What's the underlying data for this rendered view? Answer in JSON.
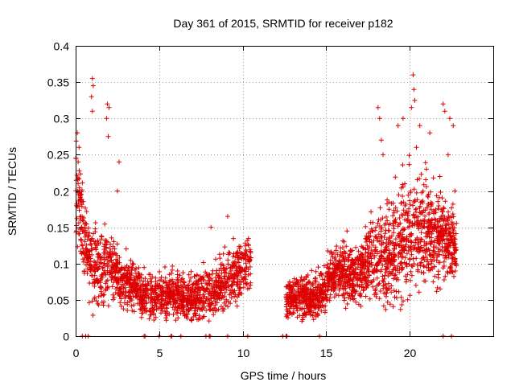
{
  "chart_data": {
    "type": "scatter",
    "title": "Day 361 of 2015, SRMTID for receiver p182",
    "xlabel": "GPS time / hours",
    "ylabel": "SRMTID / TECUs",
    "xlim": [
      0,
      25
    ],
    "ylim": [
      0,
      0.4
    ],
    "grid": true,
    "marker": "+",
    "color": "#dd0000",
    "x_ticks": [
      0,
      5,
      10,
      15,
      20
    ],
    "x_tick_labels": [
      "0",
      "5",
      "10",
      "15",
      "20"
    ],
    "y_ticks": [
      0,
      0.05,
      0.1,
      0.15,
      0.2,
      0.25,
      0.3,
      0.35,
      0.4
    ],
    "y_tick_labels": [
      "0",
      "0.05",
      "0.1",
      "0.15",
      "0.2",
      "0.25",
      "0.3",
      "0.35",
      "0.4"
    ],
    "profile": {
      "description": "approximate median SRMTID vs time (hours, TECU)",
      "x": [
        0,
        0.3,
        0.6,
        1.0,
        1.5,
        2.0,
        2.5,
        3.0,
        3.5,
        4.0,
        4.5,
        5.0,
        5.5,
        6.0,
        6.5,
        7.0,
        7.5,
        8.0,
        8.5,
        9.0,
        9.5,
        10.0,
        10.5,
        12.6,
        13.0,
        13.5,
        14.0,
        14.5,
        15.0,
        15.5,
        16.0,
        16.5,
        17.0,
        17.5,
        18.0,
        18.5,
        19.0,
        19.5,
        20.0,
        20.5,
        21.0,
        21.5,
        22.0,
        22.5,
        22.8
      ],
      "y": [
        0.2,
        0.17,
        0.12,
        0.1,
        0.09,
        0.1,
        0.085,
        0.075,
        0.07,
        0.055,
        0.055,
        0.055,
        0.06,
        0.055,
        0.055,
        0.05,
        0.055,
        0.06,
        0.065,
        0.08,
        0.085,
        0.095,
        0.1,
        0.055,
        0.055,
        0.055,
        0.05,
        0.055,
        0.07,
        0.085,
        0.09,
        0.085,
        0.09,
        0.1,
        0.11,
        0.115,
        0.12,
        0.13,
        0.14,
        0.14,
        0.145,
        0.14,
        0.14,
        0.13,
        0.12
      ]
    },
    "spread": {
      "description": "approximate vertical scatter half-width per segment",
      "x": [
        0,
        0.5,
        1.0,
        2.0,
        2.5,
        4.0,
        8.0,
        9.5,
        10.5,
        12.6,
        15.0,
        17.5,
        18.5,
        20.0,
        21.5,
        22.8
      ],
      "y": [
        0.05,
        0.05,
        0.05,
        0.04,
        0.03,
        0.025,
        0.03,
        0.035,
        0.03,
        0.025,
        0.03,
        0.04,
        0.06,
        0.07,
        0.06,
        0.04
      ]
    },
    "highlights": [
      {
        "x": 0.1,
        "y": 0.28
      },
      {
        "x": 0.2,
        "y": 0.26
      },
      {
        "x": 0.15,
        "y": 0.24
      },
      {
        "x": 1.0,
        "y": 0.355
      },
      {
        "x": 1.05,
        "y": 0.345
      },
      {
        "x": 0.95,
        "y": 0.33
      },
      {
        "x": 1.0,
        "y": 0.31
      },
      {
        "x": 1.9,
        "y": 0.32
      },
      {
        "x": 2.0,
        "y": 0.315
      },
      {
        "x": 1.85,
        "y": 0.3
      },
      {
        "x": 1.95,
        "y": 0.275
      },
      {
        "x": 2.6,
        "y": 0.24
      },
      {
        "x": 2.5,
        "y": 0.2
      },
      {
        "x": 9.1,
        "y": 0.165
      },
      {
        "x": 8.1,
        "y": 0.15
      },
      {
        "x": 18.1,
        "y": 0.315
      },
      {
        "x": 18.2,
        "y": 0.3
      },
      {
        "x": 18.3,
        "y": 0.27
      },
      {
        "x": 18.4,
        "y": 0.25
      },
      {
        "x": 19.3,
        "y": 0.29
      },
      {
        "x": 19.6,
        "y": 0.3
      },
      {
        "x": 20.2,
        "y": 0.36
      },
      {
        "x": 20.25,
        "y": 0.34
      },
      {
        "x": 20.3,
        "y": 0.325
      },
      {
        "x": 20.1,
        "y": 0.315
      },
      {
        "x": 20.4,
        "y": 0.26
      },
      {
        "x": 20.6,
        "y": 0.29
      },
      {
        "x": 21.2,
        "y": 0.28
      },
      {
        "x": 22.0,
        "y": 0.32
      },
      {
        "x": 22.1,
        "y": 0.31
      },
      {
        "x": 22.4,
        "y": 0.3
      },
      {
        "x": 22.6,
        "y": 0.29
      },
      {
        "x": 22.3,
        "y": 0.25
      },
      {
        "x": 22.7,
        "y": 0.2
      },
      {
        "x": 21.8,
        "y": 0.22
      },
      {
        "x": 21.0,
        "y": 0.23
      }
    ],
    "zeros": [
      0.4,
      0.6,
      0.75,
      4.1,
      4.15,
      5.0,
      5.7,
      5.75,
      6.3,
      7.8,
      8.0,
      8.05,
      9.1,
      10.3,
      12.4,
      12.6,
      12.65,
      14.6,
      22.0,
      22.5
    ]
  }
}
